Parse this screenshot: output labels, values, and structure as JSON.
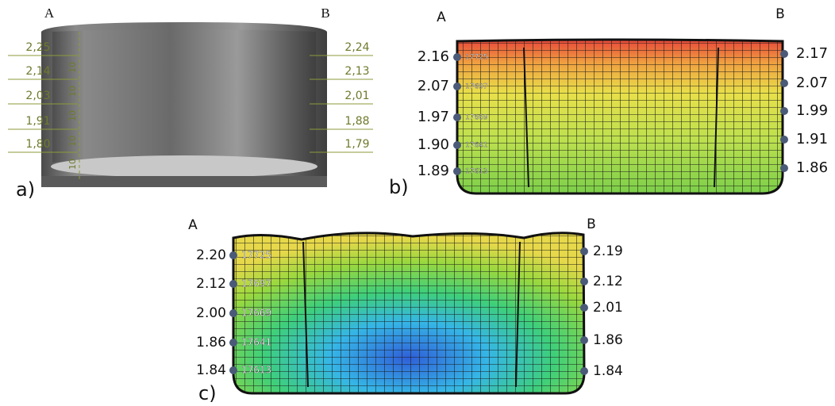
{
  "panels": [
    {
      "label": "a)",
      "left_end": "A",
      "right_end": "B",
      "left_values": [
        "2,25",
        "2,14",
        "2,03",
        "1,91",
        "1,80"
      ],
      "right_values": [
        "2,24",
        "2,13",
        "2,01",
        "1,88",
        "1,79"
      ],
      "spacings": [
        "10",
        "10",
        "10",
        "10",
        "10"
      ]
    },
    {
      "label": "b)",
      "left_end": "A",
      "right_end": "B",
      "left_values": [
        "2.16",
        "2.07",
        "1.97",
        "1.90",
        "1.89"
      ],
      "right_values": [
        "2.17",
        "2.07",
        "1.99",
        "1.91",
        "1.86"
      ],
      "nodes": [
        "17725",
        "17697",
        "17669",
        "17641",
        "17613"
      ]
    },
    {
      "label": "c)",
      "left_end": "A",
      "right_end": "B",
      "left_values": [
        "2.20",
        "2.12",
        "2.00",
        "1.86",
        "1.84"
      ],
      "right_values": [
        "2.19",
        "2.12",
        "2.01",
        "1.86",
        "1.84"
      ],
      "nodes": [
        "17725",
        "17697",
        "17669",
        "17641",
        "17613"
      ]
    }
  ]
}
